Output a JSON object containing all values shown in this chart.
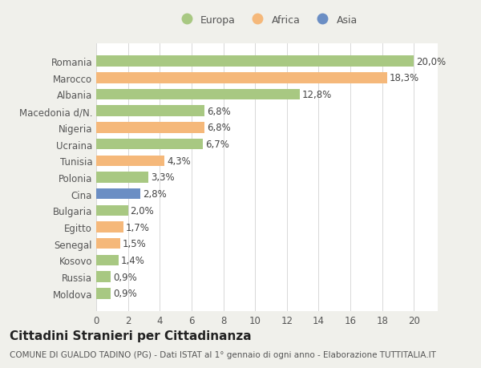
{
  "categories": [
    "Moldova",
    "Russia",
    "Kosovo",
    "Senegal",
    "Egitto",
    "Bulgaria",
    "Cina",
    "Polonia",
    "Tunisia",
    "Ucraina",
    "Nigeria",
    "Macedonia d/N.",
    "Albania",
    "Marocco",
    "Romania"
  ],
  "values": [
    0.9,
    0.9,
    1.4,
    1.5,
    1.7,
    2.0,
    2.8,
    3.3,
    4.3,
    6.7,
    6.8,
    6.8,
    12.8,
    18.3,
    20.0
  ],
  "colors": [
    "#a8c882",
    "#a8c882",
    "#a8c882",
    "#f5b87a",
    "#f5b87a",
    "#a8c882",
    "#6b8ec4",
    "#a8c882",
    "#f5b87a",
    "#a8c882",
    "#f5b87a",
    "#a8c882",
    "#a8c882",
    "#f5b87a",
    "#a8c882"
  ],
  "labels": [
    "0,9%",
    "0,9%",
    "1,4%",
    "1,5%",
    "1,7%",
    "2,0%",
    "2,8%",
    "3,3%",
    "4,3%",
    "6,7%",
    "6,8%",
    "6,8%",
    "12,8%",
    "18,3%",
    "20,0%"
  ],
  "legend": [
    {
      "label": "Europa",
      "color": "#a8c882"
    },
    {
      "label": "Africa",
      "color": "#f5b87a"
    },
    {
      "label": "Asia",
      "color": "#6b8ec4"
    }
  ],
  "xlim": [
    0,
    21.5
  ],
  "xticks": [
    0,
    2,
    4,
    6,
    8,
    10,
    12,
    14,
    16,
    18,
    20
  ],
  "title": "Cittadini Stranieri per Cittadinanza",
  "subtitle": "COMUNE DI GUALDO TADINO (PG) - Dati ISTAT al 1° gennaio di ogni anno - Elaborazione TUTTITALIA.IT",
  "background_color": "#f0f0eb",
  "plot_background": "#ffffff",
  "grid_color": "#d8d8d8",
  "bar_height": 0.65,
  "label_fontsize": 8.5,
  "tick_fontsize": 8.5,
  "title_fontsize": 11,
  "subtitle_fontsize": 7.5
}
